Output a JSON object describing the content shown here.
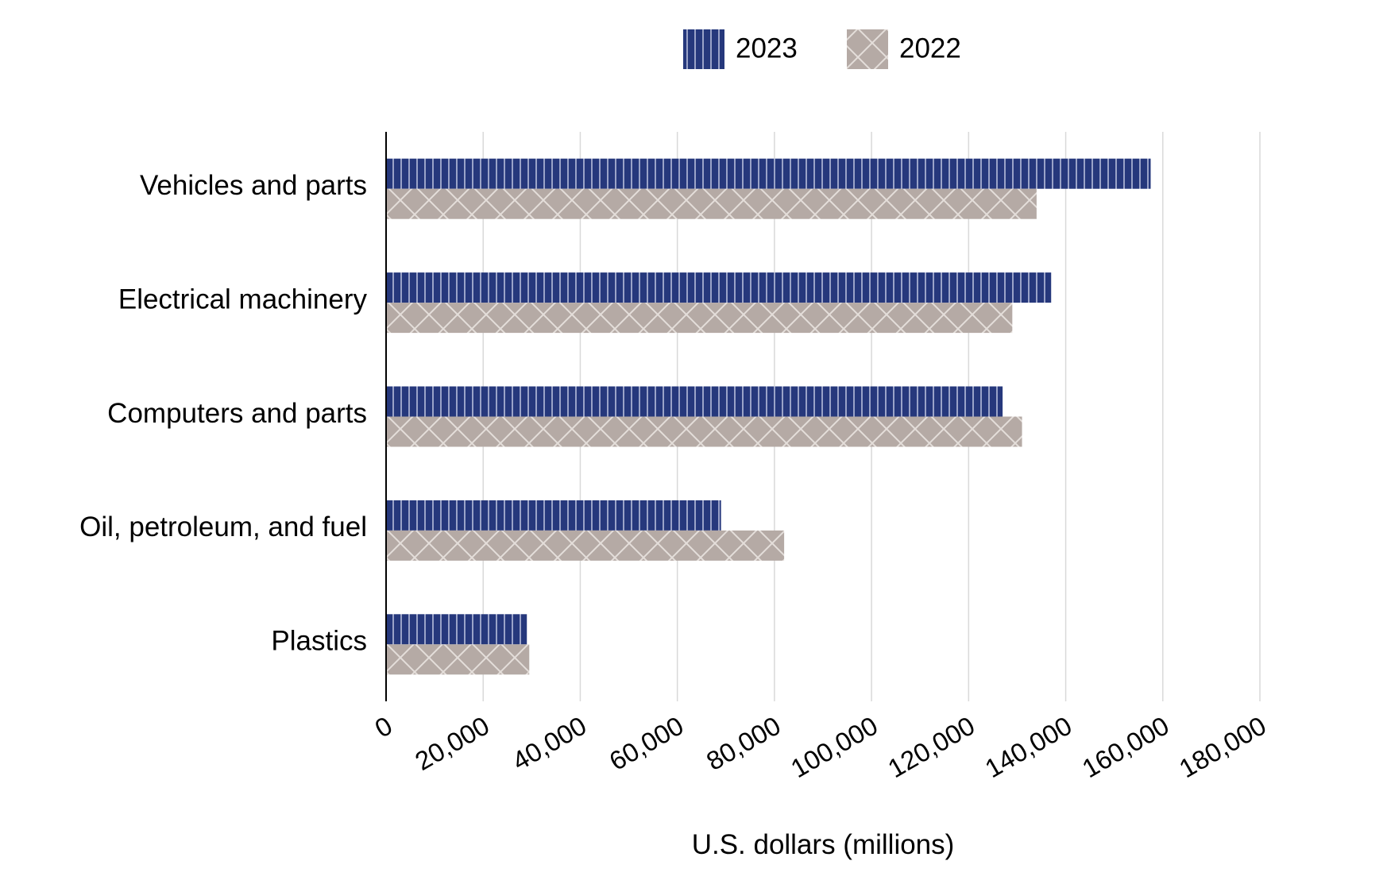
{
  "chart_data": {
    "type": "bar",
    "orientation": "horizontal",
    "categories": [
      "Vehicles and parts",
      "Electrical machinery",
      "Computers and parts",
      "Oil, petroleum, and fuel",
      "Plastics"
    ],
    "series": [
      {
        "name": "2023",
        "values": [
          157500,
          137000,
          127000,
          69000,
          29000
        ],
        "color": "#26387c",
        "pattern": "vertical-stripes"
      },
      {
        "name": "2022",
        "values": [
          134000,
          129000,
          131000,
          82000,
          29500
        ],
        "color": "#b5aaa5",
        "pattern": "crosshatch"
      }
    ],
    "xlabel": "U.S. dollars (millions)",
    "ylabel": "",
    "xlim": [
      0,
      180000
    ],
    "xticks": [
      0,
      20000,
      40000,
      60000,
      80000,
      100000,
      120000,
      140000,
      160000,
      180000
    ],
    "xtick_labels": [
      "0",
      "20,000",
      "40,000",
      "60,000",
      "80,000",
      "100,000",
      "120,000",
      "140,000",
      "160,000",
      "180,000"
    ],
    "grid": true,
    "legend_position": "top-center"
  }
}
